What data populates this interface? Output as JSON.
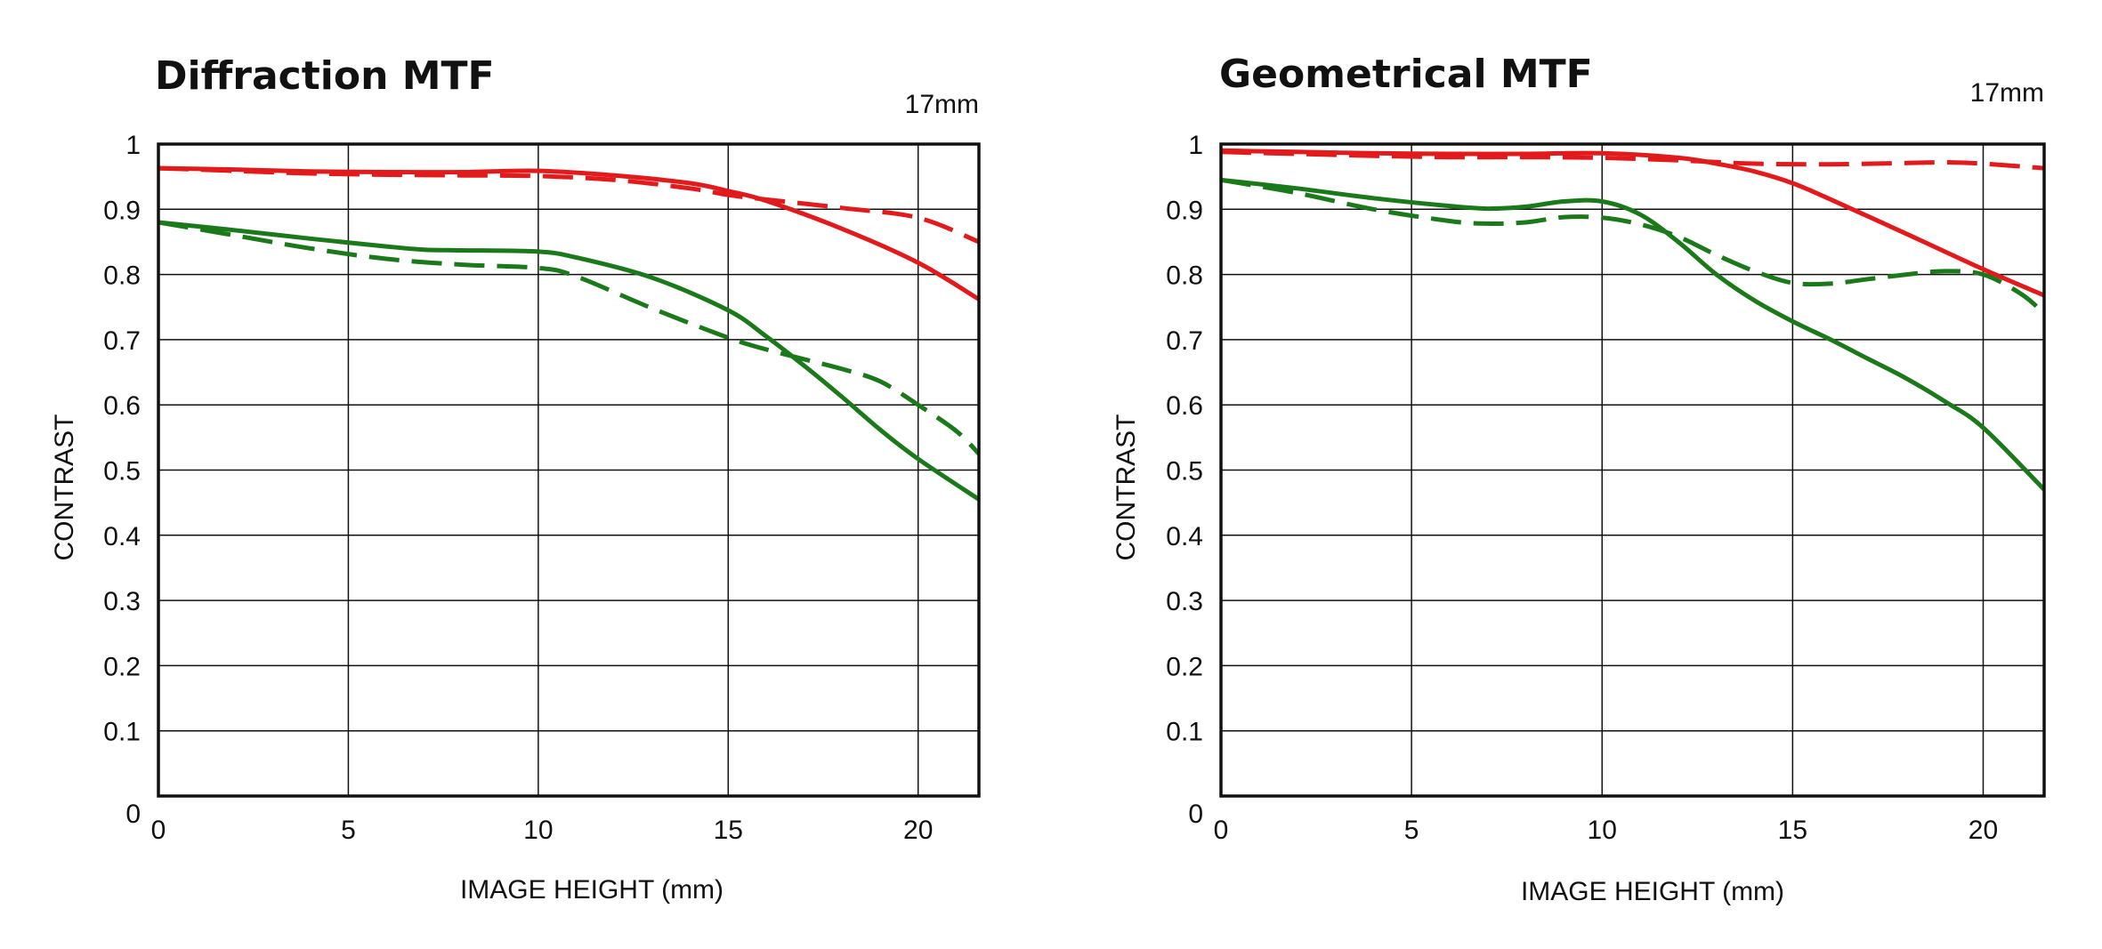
{
  "chart_data": [
    {
      "type": "line",
      "title": "Diffraction MTF",
      "annotation": "17mm",
      "xlabel": "IMAGE HEIGHT (mm)",
      "ylabel": "CONTRAST",
      "xlim": [
        0,
        21.6
      ],
      "ylim": [
        0,
        1
      ],
      "xticks": [
        "0",
        "5",
        "10",
        "15",
        "20"
      ],
      "yticks": [
        "0",
        "0.1",
        "0.2",
        "0.3",
        "0.4",
        "0.5",
        "0.6",
        "0.7",
        "0.8",
        "0.9",
        "1"
      ],
      "grid": true,
      "series": [
        {
          "color": "#e31a1c",
          "dash": "solid",
          "x": [
            0,
            2,
            4,
            6,
            8,
            10,
            12,
            14,
            15,
            16,
            18,
            20,
            21.6
          ],
          "y": [
            0.963,
            0.961,
            0.958,
            0.957,
            0.957,
            0.959,
            0.952,
            0.94,
            0.928,
            0.913,
            0.87,
            0.818,
            0.762
          ]
        },
        {
          "color": "#e31a1c",
          "dash": "dashed",
          "x": [
            0,
            2,
            4,
            6,
            8,
            10,
            12,
            14,
            15,
            16,
            18,
            20,
            21.6
          ],
          "y": [
            0.963,
            0.959,
            0.955,
            0.953,
            0.952,
            0.951,
            0.945,
            0.932,
            0.922,
            0.915,
            0.902,
            0.887,
            0.85
          ]
        },
        {
          "color": "#1a7a1a",
          "dash": "solid",
          "x": [
            0,
            2,
            4,
            6,
            7,
            8,
            10,
            11,
            13,
            15,
            16,
            17,
            18,
            19,
            20,
            21.6
          ],
          "y": [
            0.88,
            0.868,
            0.855,
            0.843,
            0.838,
            0.837,
            0.835,
            0.826,
            0.795,
            0.745,
            0.705,
            0.66,
            0.612,
            0.562,
            0.517,
            0.455
          ]
        },
        {
          "color": "#1a7a1a",
          "dash": "dashed",
          "x": [
            0,
            2,
            4,
            6,
            8,
            10,
            11,
            13,
            15,
            16,
            17,
            18,
            19,
            20,
            21,
            21.6
          ],
          "y": [
            0.88,
            0.86,
            0.84,
            0.824,
            0.815,
            0.81,
            0.797,
            0.748,
            0.703,
            0.685,
            0.67,
            0.655,
            0.636,
            0.6,
            0.56,
            0.525
          ]
        }
      ]
    },
    {
      "type": "line",
      "title": "Geometrical MTF",
      "annotation": "17mm",
      "xlabel": "IMAGE HEIGHT (mm)",
      "ylabel": "CONTRAST",
      "xlim": [
        0,
        21.6
      ],
      "ylim": [
        0,
        1
      ],
      "xticks": [
        "0",
        "5",
        "10",
        "15",
        "20"
      ],
      "yticks": [
        "0",
        "0.1",
        "0.2",
        "0.3",
        "0.4",
        "0.5",
        "0.6",
        "0.7",
        "0.8",
        "0.9",
        "1"
      ],
      "grid": true,
      "series": [
        {
          "color": "#e31a1c",
          "dash": "solid",
          "x": [
            0,
            2,
            4,
            6,
            8,
            10,
            12,
            13,
            14,
            15,
            16,
            18,
            20,
            21.6
          ],
          "y": [
            0.99,
            0.988,
            0.986,
            0.985,
            0.985,
            0.986,
            0.979,
            0.97,
            0.958,
            0.94,
            0.915,
            0.862,
            0.808,
            0.768
          ]
        },
        {
          "color": "#e31a1c",
          "dash": "dashed",
          "x": [
            0,
            2,
            4,
            6,
            8,
            10,
            12,
            14,
            16,
            18,
            19,
            20,
            21.6
          ],
          "y": [
            0.988,
            0.985,
            0.982,
            0.98,
            0.98,
            0.979,
            0.975,
            0.97,
            0.969,
            0.971,
            0.972,
            0.97,
            0.963
          ]
        },
        {
          "color": "#1a7a1a",
          "dash": "solid",
          "x": [
            0,
            2,
            4,
            6,
            7,
            8,
            9,
            10,
            11,
            12,
            13,
            14,
            15,
            16,
            17,
            18,
            19,
            20,
            21.6
          ],
          "y": [
            0.945,
            0.932,
            0.917,
            0.905,
            0.901,
            0.904,
            0.912,
            0.912,
            0.892,
            0.85,
            0.8,
            0.76,
            0.728,
            0.7,
            0.67,
            0.64,
            0.605,
            0.565,
            0.47
          ]
        },
        {
          "color": "#1a7a1a",
          "dash": "dashed",
          "x": [
            0,
            2,
            4,
            6,
            7,
            8,
            9,
            10,
            11,
            12,
            13,
            14,
            15,
            16,
            17,
            18,
            19,
            20,
            21,
            21.6
          ],
          "y": [
            0.945,
            0.925,
            0.9,
            0.882,
            0.878,
            0.88,
            0.888,
            0.887,
            0.877,
            0.858,
            0.83,
            0.805,
            0.787,
            0.786,
            0.793,
            0.8,
            0.805,
            0.8,
            0.77,
            0.74
          ]
        }
      ]
    }
  ]
}
